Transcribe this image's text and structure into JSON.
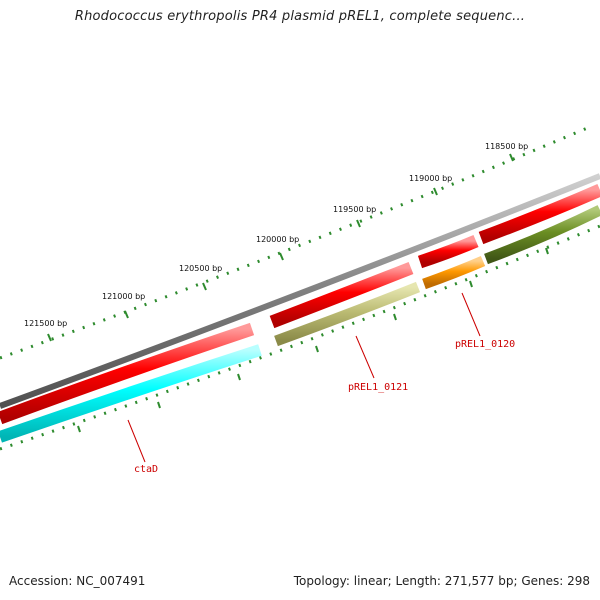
{
  "title": "Rhodococcus erythropolis PR4 plasmid pREL1, complete sequenc...",
  "footer": {
    "accession": "Accession: NC_007491",
    "summary": "Topology: linear; Length: 271,577 bp; Genes: 298"
  },
  "ruler": {
    "labels": [
      "118500 bp",
      "119000 bp",
      "119500 bp",
      "120000 bp",
      "120500 bp",
      "121000 bp",
      "121500 bp"
    ]
  },
  "genes": {
    "ctaD": "ctaD",
    "prel_0121": "pREL1_0121",
    "prel_0120": "pREL1_0120"
  },
  "colors": {
    "backbone": "#808080",
    "cds": "#ff0000",
    "ctaD": "#00ffff",
    "prel_0121": "#b8b870",
    "prel_0120": "#ff9900",
    "next_gene": "#6b8e23",
    "ticks": "#2e8b2e",
    "label": "#cc0000"
  }
}
